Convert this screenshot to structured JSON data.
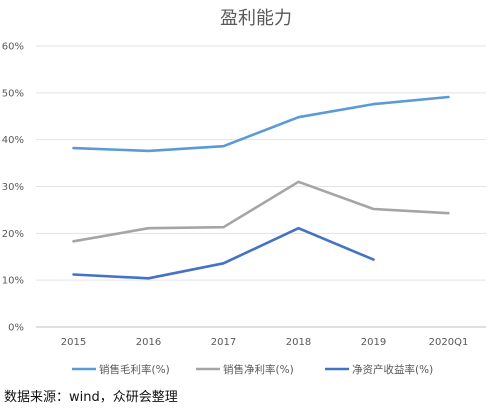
{
  "chart_data": {
    "type": "line",
    "title": "盈利能力",
    "categories": [
      "2015",
      "2016",
      "2017",
      "2018",
      "2019",
      "2020Q1"
    ],
    "y_ticks": [
      "0%",
      "10%",
      "20%",
      "30%",
      "40%",
      "50%",
      "60%"
    ],
    "ylim": [
      0,
      60
    ],
    "y_unit": "%",
    "grid": true,
    "legend_position": "bottom",
    "series": [
      {
        "name": "销售毛利率(%)",
        "color": "#5b9bd5",
        "values": [
          38.2,
          37.6,
          38.6,
          44.8,
          47.6,
          49.1
        ]
      },
      {
        "name": "销售净利率(%)",
        "color": "#a5a5a5",
        "values": [
          18.3,
          21.1,
          21.3,
          31.0,
          25.2,
          24.3
        ]
      },
      {
        "name": "净资产收益率(%)",
        "color": "#4472c4",
        "values": [
          11.2,
          10.4,
          13.6,
          21.1,
          14.4,
          null
        ]
      }
    ]
  },
  "source_text": "数据来源：wind，众研会整理"
}
